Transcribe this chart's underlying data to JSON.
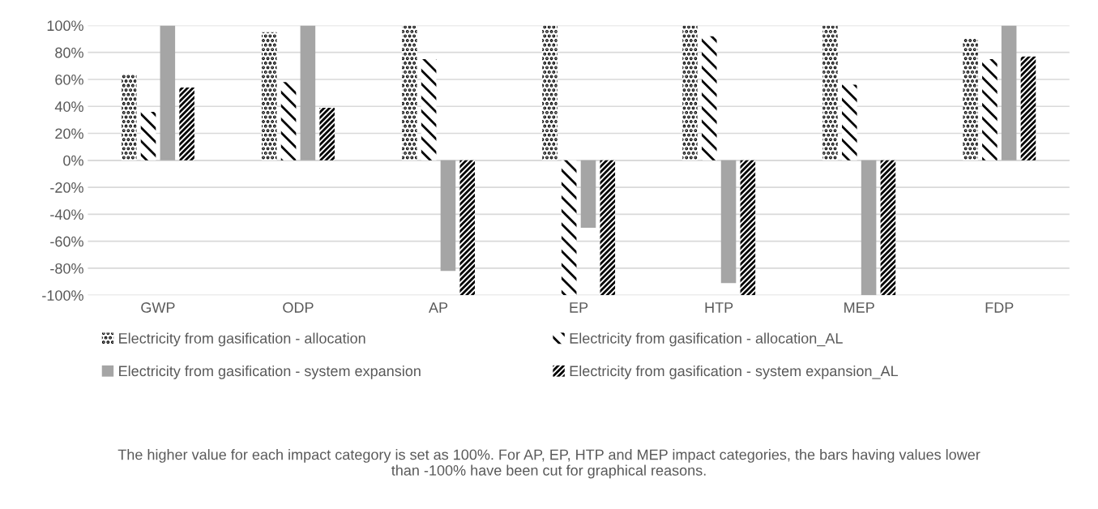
{
  "chart_data": {
    "type": "bar",
    "categories": [
      "GWP",
      "ODP",
      "AP",
      "EP",
      "HTP",
      "MEP",
      "FDP"
    ],
    "series": [
      {
        "name": "Electricity from gasification - allocation",
        "color": "#000000",
        "values": [
          64,
          95,
          100,
          100,
          100,
          100,
          90
        ]
      },
      {
        "name": "Electricity from gasification - allocation_AL",
        "color": "#000000",
        "values": [
          36,
          58,
          75,
          -100,
          92,
          56,
          75
        ]
      },
      {
        "name": "Electricity from gasification - system expansion",
        "color": "#a5a5a5",
        "values": [
          100,
          100,
          -82,
          -50,
          -91,
          -100,
          100
        ]
      },
      {
        "name": "Electricity from gasification - system expansion_AL",
        "color": "#000000",
        "values": [
          54,
          39,
          -100,
          -100,
          -100,
          -100,
          77
        ]
      }
    ],
    "ylim": [
      -100,
      100
    ],
    "yticks": [
      {
        "value": -100,
        "label": "-100%"
      },
      {
        "value": -80,
        "label": "-80%"
      },
      {
        "value": -60,
        "label": "-60%"
      },
      {
        "value": -40,
        "label": "-40%"
      },
      {
        "value": -20,
        "label": "-20%"
      },
      {
        "value": 0,
        "label": "0%"
      },
      {
        "value": 20,
        "label": "20%"
      },
      {
        "value": 40,
        "label": "40%"
      },
      {
        "value": 60,
        "label": "60%"
      },
      {
        "value": 80,
        "label": "80%"
      },
      {
        "value": 100,
        "label": "100%"
      }
    ],
    "grid": "y",
    "legend": "bottom",
    "annotations": [
      "The higher value for each impact category is set as 100%. For AP, EP, HTP and MEP impact categories, the bars having values lower than -100% have been cut for graphical reasons."
    ]
  }
}
